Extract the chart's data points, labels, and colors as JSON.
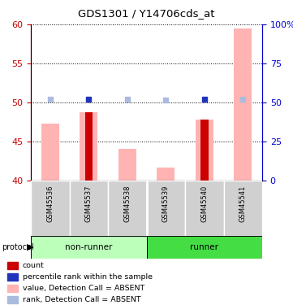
{
  "title": "GDS1301 / Y14706cds_at",
  "samples": [
    "GSM45536",
    "GSM45537",
    "GSM45538",
    "GSM45539",
    "GSM45540",
    "GSM45541"
  ],
  "x_positions": [
    0,
    1,
    2,
    3,
    4,
    5
  ],
  "ylim_left": [
    40,
    60
  ],
  "ylim_right": [
    0,
    100
  ],
  "yticks_left": [
    40,
    45,
    50,
    55,
    60
  ],
  "yticks_right": [
    0,
    25,
    50,
    75,
    100
  ],
  "ytick_labels_right": [
    "0",
    "25",
    "50",
    "75",
    "100%"
  ],
  "bar_pink_values": [
    47.3,
    48.8,
    44.1,
    41.7,
    47.8,
    59.5
  ],
  "bar_red_values": [
    null,
    48.8,
    null,
    null,
    47.8,
    null
  ],
  "rank_blue_dark": [
    null,
    52.1,
    null,
    null,
    52.1,
    null
  ],
  "rank_blue_light": [
    52.2,
    null,
    51.9,
    51.8,
    null,
    52.3
  ],
  "bar_pink_color": "#ffb3b3",
  "bar_red_color": "#cc0000",
  "rank_dark_blue": "#2233bb",
  "rank_light_blue": "#aabbdd",
  "left_axis_color": "#cc0000",
  "right_axis_color": "#0000cc",
  "dotted_line_color": "black",
  "bg_color": "white",
  "plot_bg": "white",
  "legend_items": [
    {
      "label": "count",
      "color": "#cc0000"
    },
    {
      "label": "percentile rank within the sample",
      "color": "#2233bb"
    },
    {
      "label": "value, Detection Call = ABSENT",
      "color": "#ffb3b3"
    },
    {
      "label": "rank, Detection Call = ABSENT",
      "color": "#aabbdd"
    }
  ]
}
